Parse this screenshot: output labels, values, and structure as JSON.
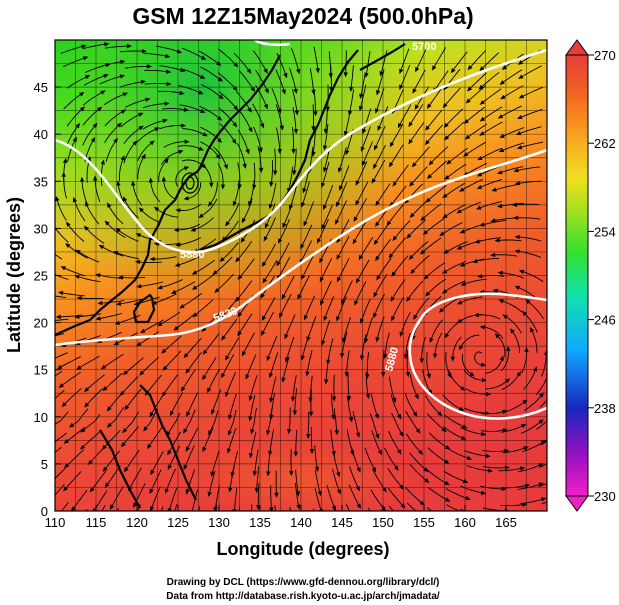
{
  "title": "GSM 12Z15May2024 (500.0hPa)",
  "x_axis": {
    "label": "Longitude (degrees)",
    "ticks": [
      "110",
      "115",
      "120",
      "125",
      "130",
      "135",
      "140",
      "145",
      "150",
      "155",
      "160",
      "165"
    ],
    "range": [
      110,
      170
    ]
  },
  "y_axis": {
    "label": "Latitude  (degrees)",
    "ticks": [
      "0",
      "5",
      "10",
      "15",
      "20",
      "25",
      "30",
      "35",
      "40",
      "45"
    ],
    "range": [
      0,
      50
    ]
  },
  "colorbar": {
    "ticks": [
      "230",
      "238",
      "246",
      "254",
      "262",
      "270"
    ],
    "range": [
      230,
      270
    ],
    "colors": [
      "#f020c8",
      "#8000c0",
      "#1020c0",
      "#10a0ff",
      "#10e0c0",
      "#30e030",
      "#a0e020",
      "#f0e020",
      "#f8a020",
      "#f06020",
      "#e83c3c"
    ]
  },
  "contour_labels": [
    "5700",
    "5820",
    "5880",
    "5880"
  ],
  "credits": {
    "line1": "Drawing by DCL (https://www.gfd-dennou.org/library/dcl/)",
    "line2": "Data from http://database.rish.kyoto-u.ac.jp/arch/jmadata/"
  }
}
